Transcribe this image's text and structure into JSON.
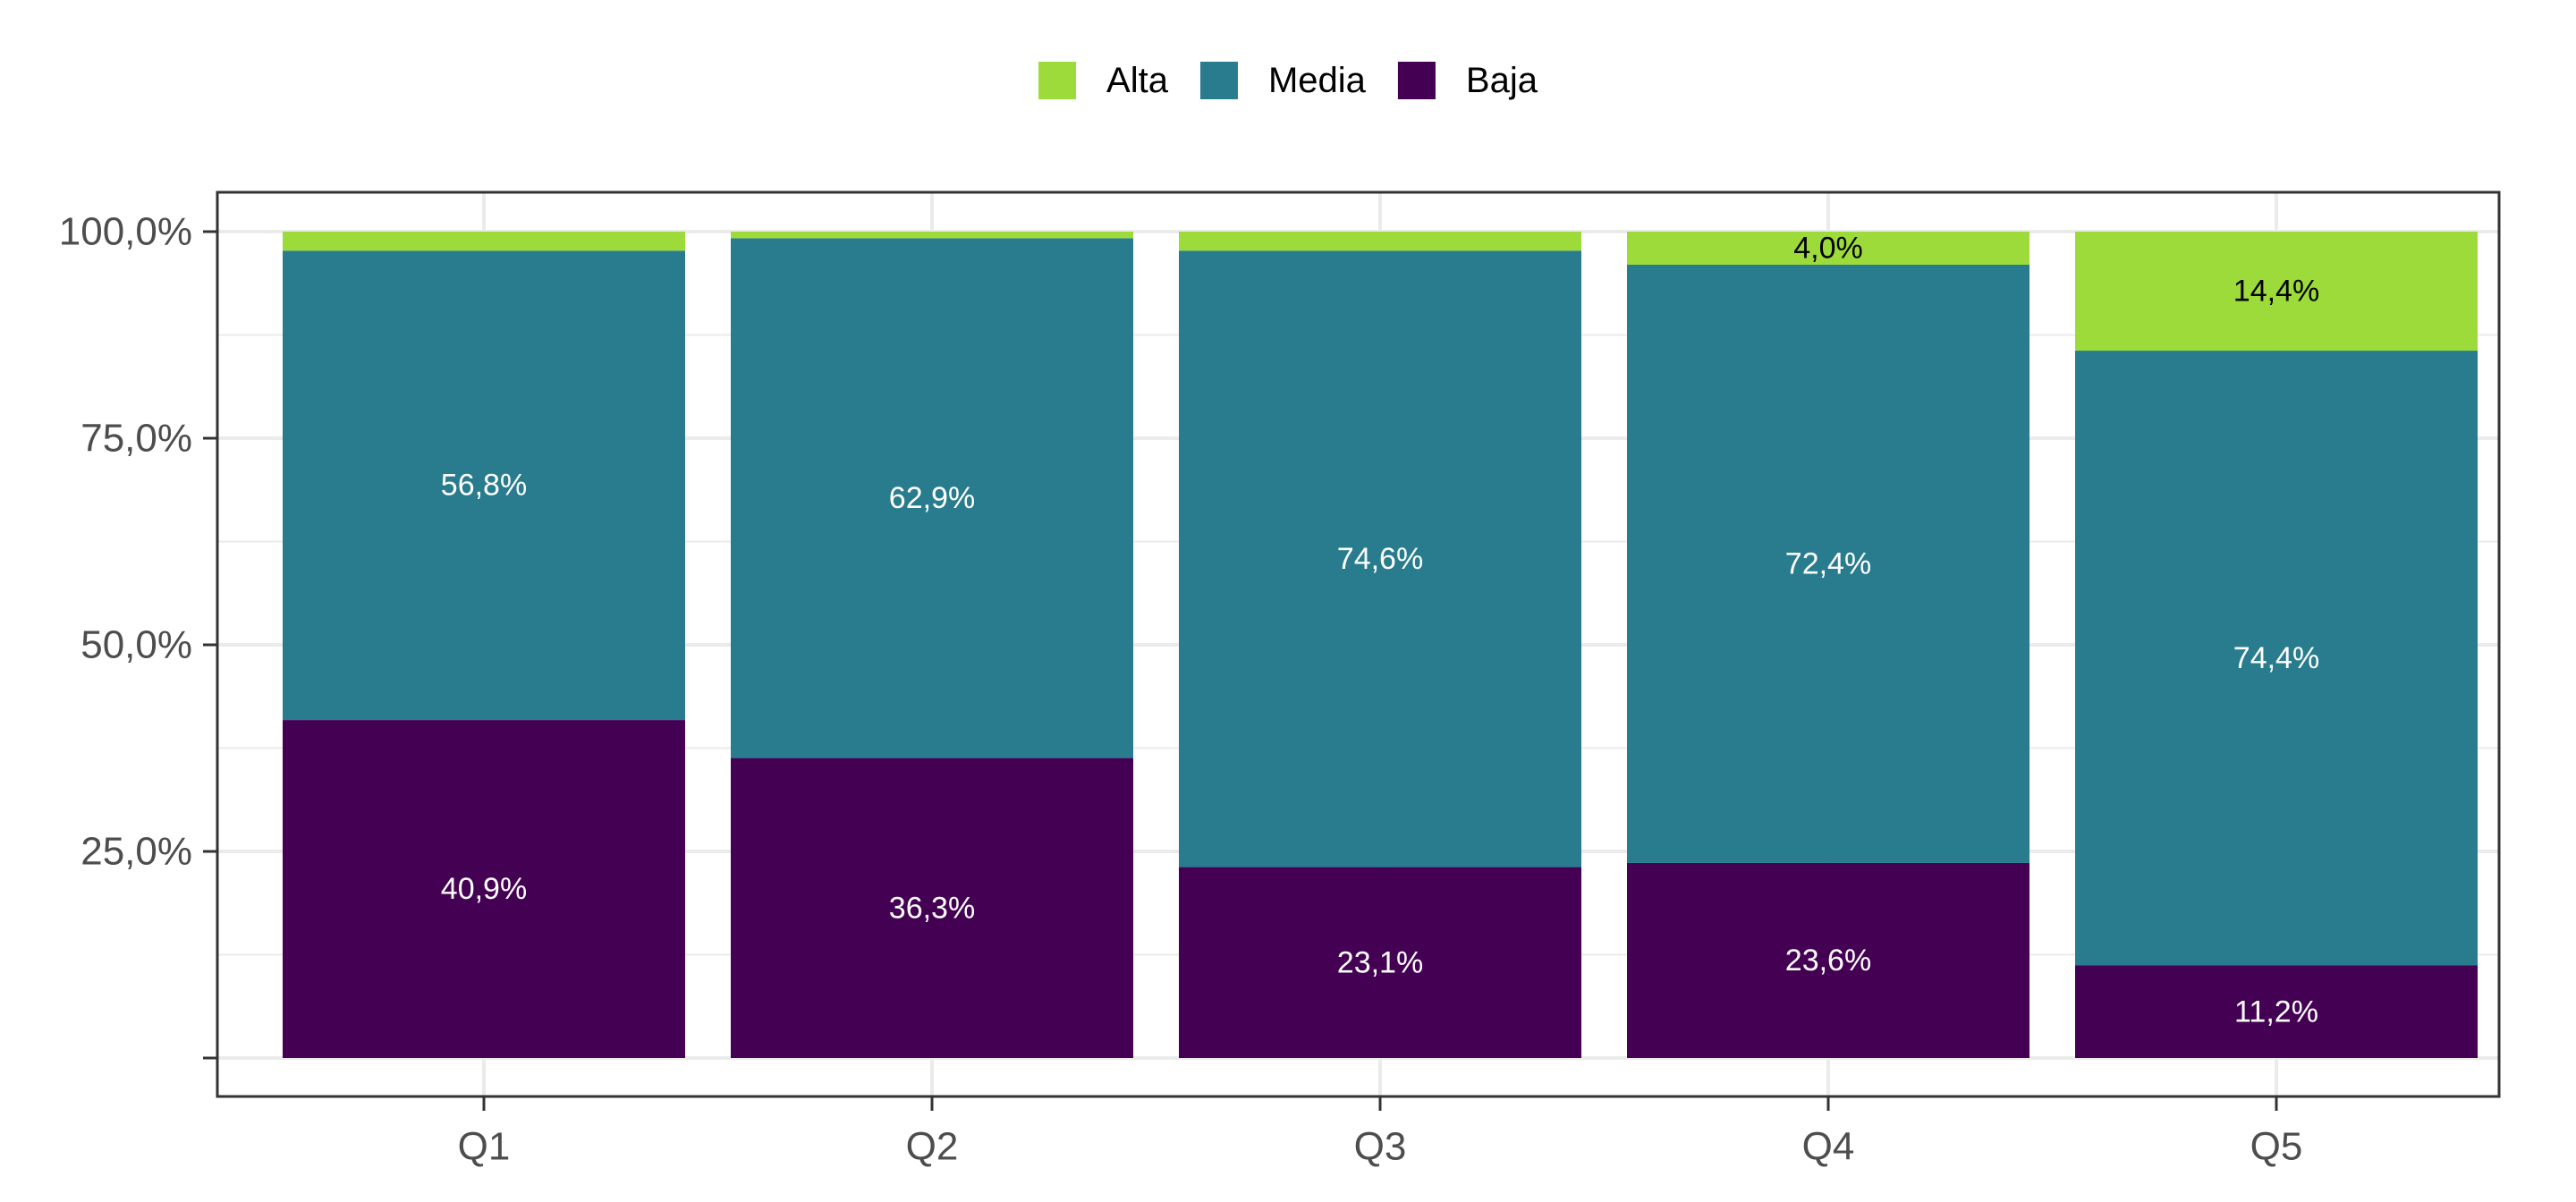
{
  "chart_data": {
    "type": "bar",
    "stacked": true,
    "categories": [
      "Q1",
      "Q2",
      "Q3",
      "Q4",
      "Q5"
    ],
    "series": [
      {
        "name": "Baja",
        "color": "#440154",
        "values": [
          40.9,
          36.3,
          23.1,
          23.6,
          11.2
        ],
        "labels": [
          "40,9%",
          "36,3%",
          "23,1%",
          "23,6%",
          "11,2%"
        ],
        "label_color": "#ffffff"
      },
      {
        "name": "Media",
        "color": "#287c8e",
        "values": [
          56.8,
          62.9,
          74.6,
          72.4,
          74.4
        ],
        "labels": [
          "56,8%",
          "62,9%",
          "74,6%",
          "72,4%",
          "74,4%"
        ],
        "label_color": "#ffffff"
      },
      {
        "name": "Alta",
        "color": "#9ddb3a",
        "values": [
          2.3,
          0.8,
          2.3,
          4.0,
          14.4
        ],
        "labels": [
          "",
          "",
          "",
          "4,0%",
          "14,4%"
        ],
        "label_color": "#000000"
      }
    ],
    "legend": {
      "position": "top",
      "order": [
        "Alta",
        "Media",
        "Baja"
      ]
    },
    "ylim": [
      0,
      100
    ],
    "yticks": [
      0,
      25,
      50,
      75,
      100
    ],
    "ytick_labels": [
      "",
      "25,0%",
      "50,0%",
      "75,0%",
      "100,0%"
    ],
    "grid": true,
    "title": "",
    "xlabel": "",
    "ylabel": ""
  }
}
